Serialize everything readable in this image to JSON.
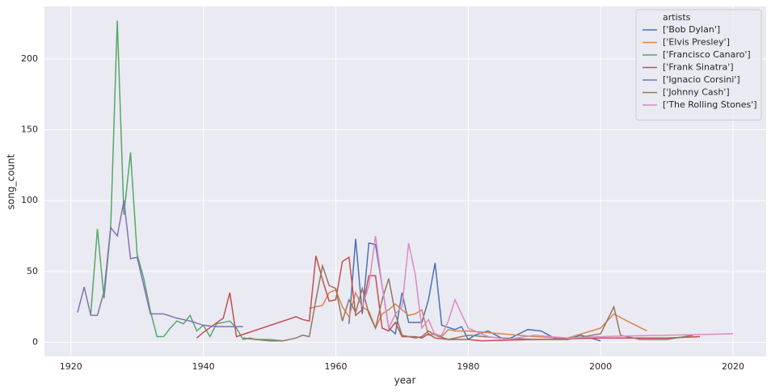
{
  "chart_data": {
    "type": "line",
    "x_label": "year",
    "y_label": "song_count",
    "legend_title": "artists",
    "legend_position": "upper right",
    "grid": true,
    "xlim": [
      1916,
      2025
    ],
    "ylim": [
      -10,
      237
    ],
    "xticks": [
      1920,
      1940,
      1960,
      1980,
      2000,
      2020
    ],
    "yticks": [
      0,
      50,
      100,
      150,
      200
    ],
    "series": [
      {
        "name": "['Bob Dylan']",
        "color": "#4c72b0",
        "x": [
          1962,
          1963,
          1964,
          1965,
          1966,
          1967,
          1968,
          1969,
          1970,
          1971,
          1972,
          1973,
          1974,
          1975,
          1976,
          1978,
          1979,
          1980,
          1981,
          1983,
          1985,
          1986,
          1989,
          1991,
          1993,
          1995,
          1997,
          2000
        ],
        "values": [
          13,
          73,
          20,
          70,
          69,
          40,
          10,
          6,
          35,
          14,
          14,
          14,
          30,
          56,
          12,
          9,
          11,
          2,
          5,
          8,
          3,
          2,
          9,
          8,
          3,
          2,
          5,
          1
        ]
      },
      {
        "name": "['Elvis Presley']",
        "color": "#dd8452",
        "x": [
          1956,
          1957,
          1958,
          1959,
          1960,
          1961,
          1962,
          1963,
          1964,
          1965,
          1966,
          1967,
          1968,
          1969,
          1970,
          1971,
          1972,
          1973,
          1974,
          1975,
          1976,
          1977,
          1978,
          1980,
          1985,
          1990,
          1995,
          2000,
          2002,
          2004,
          2007
        ],
        "values": [
          24,
          25,
          26,
          35,
          37,
          25,
          18,
          35,
          25,
          22,
          10,
          20,
          23,
          27,
          23,
          19,
          20,
          23,
          5,
          6,
          4,
          9,
          8,
          8,
          6,
          4,
          3,
          10,
          20,
          15,
          8
        ]
      },
      {
        "name": "['Francisco Canaro']",
        "color": "#55a868",
        "x": [
          1923,
          1924,
          1925,
          1926,
          1927,
          1928,
          1929,
          1930,
          1931,
          1932,
          1933,
          1934,
          1935,
          1936,
          1937,
          1938,
          1939,
          1940,
          1941,
          1942,
          1943,
          1944,
          1945,
          1946,
          1947,
          1948,
          1950,
          1952
        ],
        "values": [
          20,
          80,
          31,
          80,
          227,
          90,
          134,
          62,
          45,
          22,
          4,
          4,
          10,
          15,
          13,
          19,
          8,
          12,
          4,
          13,
          14,
          15,
          10,
          2,
          3,
          2,
          2,
          1
        ]
      },
      {
        "name": "['Frank Sinatra']",
        "color": "#c44e52",
        "x": [
          1939,
          1940,
          1943,
          1944,
          1945,
          1954,
          1955,
          1956,
          1957,
          1958,
          1959,
          1960,
          1961,
          1962,
          1963,
          1964,
          1965,
          1966,
          1967,
          1968,
          1969,
          1970,
          1971,
          1972,
          1973,
          1974,
          1975,
          1977,
          1980,
          1982,
          1990,
          2000,
          2010,
          2015
        ],
        "values": [
          3,
          7,
          17,
          35,
          4,
          18,
          16,
          15,
          61,
          44,
          29,
          30,
          57,
          60,
          19,
          23,
          47,
          47,
          10,
          8,
          14,
          4,
          4,
          4,
          3,
          6,
          3,
          2,
          2,
          1,
          2,
          3,
          3,
          4
        ]
      },
      {
        "name": "['Ignacio Corsini']",
        "color": "#8172b3",
        "x": [
          1921,
          1922,
          1923,
          1924,
          1925,
          1926,
          1927,
          1928,
          1929,
          1930,
          1931,
          1932,
          1934,
          1936,
          1938,
          1940,
          1942,
          1944,
          1946
        ],
        "values": [
          21,
          39,
          19,
          19,
          36,
          81,
          75,
          100,
          59,
          60,
          40,
          20,
          20,
          17,
          15,
          12,
          11,
          11,
          11
        ]
      },
      {
        "name": "['Johnny Cash']",
        "color": "#937860",
        "x": [
          1946,
          1950,
          1952,
          1954,
          1955,
          1956,
          1957,
          1958,
          1959,
          1960,
          1961,
          1962,
          1963,
          1964,
          1965,
          1966,
          1967,
          1968,
          1969,
          1970,
          1971,
          1972,
          1973,
          1974,
          1975,
          1977,
          1980,
          1985,
          1990,
          1995,
          2000,
          2002,
          2003,
          2006,
          2010,
          2014
        ],
        "values": [
          3,
          1,
          1,
          3,
          5,
          4,
          30,
          54,
          40,
          38,
          15,
          30,
          21,
          38,
          20,
          10,
          30,
          45,
          20,
          5,
          4,
          3,
          4,
          8,
          5,
          2,
          5,
          3,
          2,
          2,
          6,
          25,
          5,
          2,
          2,
          5
        ]
      },
      {
        "name": "['The Rolling Stones']",
        "color": "#da8bc3",
        "x": [
          1964,
          1965,
          1966,
          1967,
          1968,
          1969,
          1970,
          1971,
          1972,
          1973,
          1974,
          1975,
          1976,
          1977,
          1978,
          1980,
          1983,
          1986,
          1990,
          1995,
          2000,
          2010,
          2020
        ],
        "values": [
          25,
          40,
          75,
          40,
          10,
          20,
          25,
          70,
          48,
          10,
          16,
          5,
          5,
          15,
          30,
          10,
          4,
          2,
          5,
          3,
          4,
          5,
          6
        ]
      }
    ]
  }
}
